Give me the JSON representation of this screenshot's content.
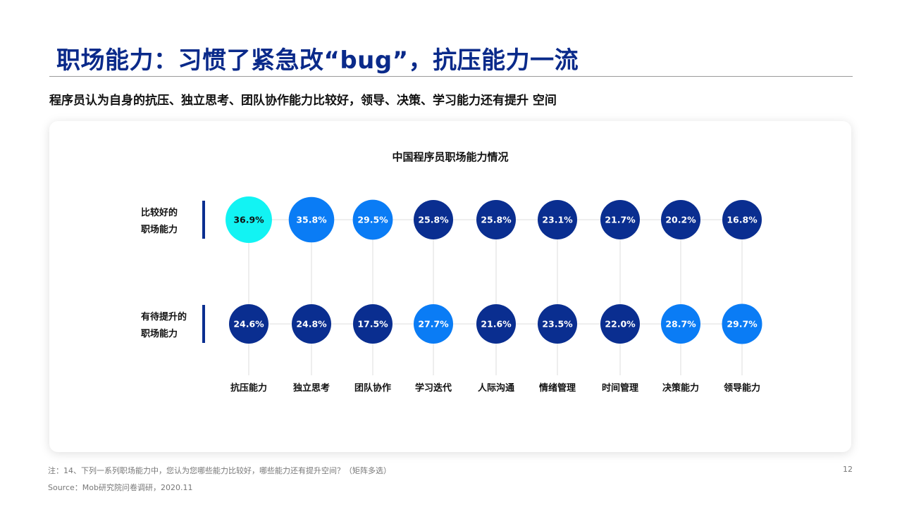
{
  "page": {
    "title": "职场能力：习惯了紧急改“bug”，抗压能力一流",
    "subtitle": "程序员认为自身的抗压、独立思考、团队协作能力比较好，领导、决策、学习能力还有提升 空间",
    "footnote": "注：14、下列一系列职场能力中，您认为您哪些能力比较好，哪些能力还有提升空间？（矩阵多选）",
    "source": "Source：Mob研究院问卷调研，2020.11",
    "page_number": "12"
  },
  "colors": {
    "title": "#0a2a8a",
    "cyan": "#12f3f3",
    "light_blue": "#0a7cf5",
    "dark_blue": "#0a2e90"
  },
  "chart_data": {
    "type": "bubble-matrix",
    "title": "中国程序员职场能力情况",
    "categories": [
      "抗压能力",
      "独立思考",
      "团队协作",
      "学习迭代",
      "人际沟通",
      "情绪管理",
      "时间管理",
      "决策能力",
      "领导能力"
    ],
    "series": [
      {
        "name": "比较好的职场能力",
        "name_lines": [
          "比较好的",
          "职场能力"
        ],
        "values": [
          36.9,
          35.8,
          29.5,
          25.8,
          25.8,
          23.1,
          21.7,
          20.2,
          16.8
        ],
        "labels": [
          "36.9%",
          "35.8%",
          "29.5%",
          "25.8%",
          "25.8%",
          "23.1%",
          "21.7%",
          "20.2%",
          "16.8%"
        ],
        "colors": [
          "cyan",
          "light_blue",
          "light_blue",
          "dark_blue",
          "dark_blue",
          "dark_blue",
          "dark_blue",
          "dark_blue",
          "dark_blue"
        ]
      },
      {
        "name": "有待提升的职场能力",
        "name_lines": [
          "有待提升的",
          "职场能力"
        ],
        "values": [
          24.6,
          24.8,
          17.5,
          27.7,
          21.6,
          23.5,
          22.0,
          28.7,
          29.7
        ],
        "labels": [
          "24.6%",
          "24.8%",
          "17.5%",
          "27.7%",
          "21.6%",
          "23.5%",
          "22.0%",
          "28.7%",
          "29.7%"
        ],
        "colors": [
          "dark_blue",
          "dark_blue",
          "dark_blue",
          "light_blue",
          "dark_blue",
          "dark_blue",
          "dark_blue",
          "light_blue",
          "light_blue"
        ]
      }
    ],
    "unit": "%"
  }
}
